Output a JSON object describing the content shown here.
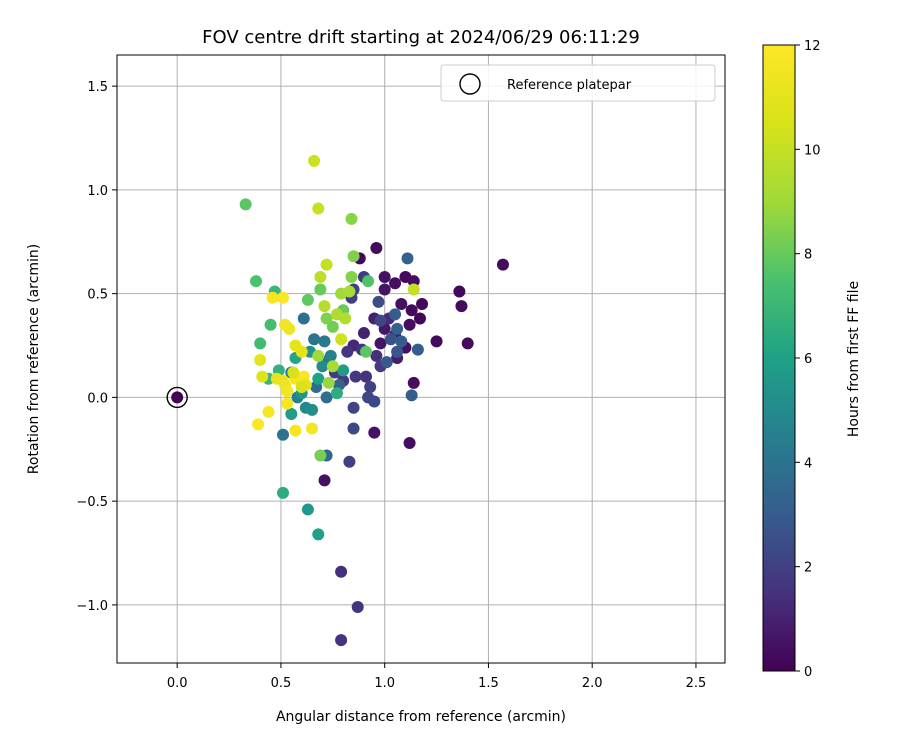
{
  "chart_data": {
    "type": "scatter",
    "title": "FOV centre drift starting at 2024/06/29 06:11:29",
    "xlabel": "Angular distance from reference (arcmin)",
    "ylabel": "Rotation from reference (arcmin)",
    "xlim": [
      -0.29,
      2.64
    ],
    "ylim": [
      -1.28,
      1.65
    ],
    "xticks": [
      0.0,
      0.5,
      1.0,
      1.5,
      2.0,
      2.5
    ],
    "yticks": [
      -1.0,
      -0.5,
      0.0,
      0.5,
      1.0,
      1.5
    ],
    "xtick_labels": [
      "0.0",
      "0.5",
      "1.0",
      "1.5",
      "2.0",
      "2.5"
    ],
    "ytick_labels": [
      "−1.0",
      "−0.5",
      "0.0",
      "0.5",
      "1.0",
      "1.5"
    ],
    "grid": true,
    "legend": {
      "placement": "top-right",
      "entries": [
        "Reference platepar"
      ]
    },
    "reference_point": {
      "x": 0.0,
      "y": 0.0,
      "hours": 0
    },
    "colorbar": {
      "label": "Hours from first FF file",
      "range": [
        0,
        12
      ],
      "ticks": [
        0,
        2,
        4,
        6,
        8,
        10,
        12
      ],
      "tick_labels": [
        "0",
        "2",
        "4",
        "6",
        "8",
        "10",
        "12"
      ],
      "colormap": "viridis"
    },
    "points": [
      [
        0.88,
        0.67,
        0.2
      ],
      [
        0.96,
        0.72,
        0.3
      ],
      [
        1.0,
        0.58,
        0.5
      ],
      [
        1.05,
        0.55,
        0.4
      ],
      [
        1.1,
        0.58,
        0.3
      ],
      [
        1.14,
        0.56,
        0.4
      ],
      [
        1.0,
        0.52,
        0.6
      ],
      [
        1.08,
        0.45,
        0.5
      ],
      [
        1.13,
        0.42,
        0.3
      ],
      [
        1.18,
        0.45,
        0.2
      ],
      [
        1.12,
        0.35,
        0.4
      ],
      [
        1.17,
        0.38,
        0.2
      ],
      [
        1.05,
        0.3,
        0.8
      ],
      [
        1.0,
        0.33,
        0.7
      ],
      [
        0.98,
        0.26,
        0.6
      ],
      [
        1.1,
        0.24,
        0.5
      ],
      [
        1.06,
        0.19,
        0.9
      ],
      [
        1.25,
        0.27,
        0.3
      ],
      [
        1.36,
        0.51,
        0.2
      ],
      [
        1.37,
        0.44,
        0.3
      ],
      [
        1.4,
        0.26,
        0.3
      ],
      [
        1.57,
        0.64,
        0.3
      ],
      [
        1.14,
        0.07,
        0.4
      ],
      [
        0.95,
        -0.17,
        0.5
      ],
      [
        1.12,
        -0.22,
        0.4
      ],
      [
        0.71,
        -0.4,
        0.5
      ],
      [
        0.95,
        0.38,
        1.0
      ],
      [
        0.9,
        0.31,
        1.0
      ],
      [
        0.85,
        0.25,
        1.2
      ],
      [
        1.02,
        0.38,
        1.3
      ],
      [
        0.96,
        0.2,
        1.4
      ],
      [
        0.89,
        0.23,
        1.5
      ],
      [
        0.82,
        0.22,
        1.6
      ],
      [
        0.91,
        0.1,
        1.5
      ],
      [
        0.98,
        0.15,
        1.8
      ],
      [
        0.86,
        0.1,
        1.7
      ],
      [
        0.8,
        0.08,
        1.8
      ],
      [
        0.76,
        0.12,
        1.9
      ],
      [
        0.93,
        0.05,
        2.0
      ],
      [
        0.85,
        -0.05,
        2.1
      ],
      [
        0.92,
        0.0,
        2.2
      ],
      [
        0.95,
        -0.02,
        2.3
      ],
      [
        0.98,
        0.37,
        2.2
      ],
      [
        0.84,
        0.48,
        2.0
      ],
      [
        0.85,
        0.52,
        2.0
      ],
      [
        0.9,
        0.58,
        1.9
      ],
      [
        0.97,
        0.46,
        2.5
      ],
      [
        1.03,
        0.28,
        2.6
      ],
      [
        1.06,
        0.22,
        2.8
      ],
      [
        1.01,
        0.17,
        2.9
      ],
      [
        1.08,
        0.27,
        3.0
      ],
      [
        1.05,
        0.4,
        3.1
      ],
      [
        1.06,
        0.33,
        3.2
      ],
      [
        1.13,
        0.01,
        3.0
      ],
      [
        1.16,
        0.23,
        3.0
      ],
      [
        1.11,
        0.67,
        3.2
      ],
      [
        0.79,
        -0.84,
        1.4
      ],
      [
        0.87,
        -1.01,
        1.6
      ],
      [
        0.79,
        -1.17,
        1.5
      ],
      [
        0.83,
        -0.31,
        2.0
      ],
      [
        0.85,
        -0.15,
        2.3
      ],
      [
        0.72,
        -0.28,
        3.5
      ],
      [
        0.78,
        0.06,
        3.4
      ],
      [
        0.72,
        0.0,
        3.8
      ],
      [
        0.67,
        0.05,
        3.7
      ],
      [
        0.73,
        0.18,
        3.8
      ],
      [
        0.66,
        0.28,
        4.0
      ],
      [
        0.61,
        0.38,
        3.9
      ],
      [
        0.55,
        0.12,
        4.2
      ],
      [
        0.51,
        -0.18,
        3.9
      ],
      [
        0.58,
        0.0,
        4.5
      ],
      [
        0.62,
        -0.05,
        4.9
      ],
      [
        0.65,
        -0.06,
        5.2
      ],
      [
        0.6,
        0.02,
        5.5
      ],
      [
        0.55,
        -0.08,
        5.8
      ],
      [
        0.63,
        -0.54,
        5.6
      ],
      [
        0.68,
        -0.66,
        6.0
      ],
      [
        0.51,
        -0.46,
        6.5
      ],
      [
        0.71,
        0.27,
        4.3
      ],
      [
        0.74,
        0.2,
        4.6
      ],
      [
        0.7,
        0.15,
        5.0
      ],
      [
        0.64,
        0.22,
        5.3
      ],
      [
        0.68,
        0.09,
        6.0
      ],
      [
        0.77,
        0.02,
        6.5
      ],
      [
        0.8,
        0.13,
        5.8
      ],
      [
        0.57,
        0.19,
        6.2
      ],
      [
        0.49,
        0.13,
        6.7
      ],
      [
        0.44,
        0.09,
        7.0
      ],
      [
        0.4,
        0.26,
        7.2
      ],
      [
        0.45,
        0.35,
        7.3
      ],
      [
        0.47,
        0.51,
        7.0
      ],
      [
        0.38,
        0.56,
        7.5
      ],
      [
        0.33,
        0.93,
        7.8
      ],
      [
        0.63,
        0.47,
        7.9
      ],
      [
        0.69,
        0.52,
        8.0
      ],
      [
        0.75,
        0.34,
        8.2
      ],
      [
        0.72,
        0.38,
        8.4
      ],
      [
        0.8,
        0.42,
        8.1
      ],
      [
        0.84,
        0.58,
        8.5
      ],
      [
        0.85,
        0.68,
        8.4
      ],
      [
        0.92,
        0.56,
        7.6
      ],
      [
        0.91,
        0.22,
        7.8
      ],
      [
        0.84,
        0.86,
        8.6
      ],
      [
        0.69,
        -0.28,
        8.3
      ],
      [
        0.73,
        0.07,
        8.9
      ],
      [
        0.75,
        0.15,
        9.2
      ],
      [
        0.68,
        0.2,
        9.0
      ],
      [
        0.79,
        0.5,
        9.0
      ],
      [
        0.83,
        0.51,
        9.2
      ],
      [
        0.77,
        0.4,
        9.4
      ],
      [
        0.81,
        0.38,
        9.5
      ],
      [
        0.71,
        0.44,
        9.6
      ],
      [
        0.69,
        0.58,
        9.7
      ],
      [
        0.72,
        0.64,
        10.0
      ],
      [
        0.68,
        0.91,
        10.1
      ],
      [
        0.66,
        1.14,
        10.2
      ],
      [
        1.14,
        0.52,
        10.0
      ],
      [
        0.79,
        0.28,
        10.3
      ],
      [
        0.41,
        0.1,
        10.8
      ],
      [
        0.4,
        0.18,
        11.0
      ],
      [
        0.51,
        0.08,
        11.2
      ],
      [
        0.52,
        0.06,
        11.4
      ],
      [
        0.53,
        0.03,
        11.6
      ],
      [
        0.57,
        0.09,
        11.5
      ],
      [
        0.61,
        0.1,
        11.7
      ],
      [
        0.6,
        0.22,
        11.0
      ],
      [
        0.57,
        0.25,
        11.1
      ],
      [
        0.54,
        0.33,
        11.3
      ],
      [
        0.52,
        0.35,
        11.5
      ],
      [
        0.51,
        0.48,
        11.9
      ],
      [
        0.46,
        0.48,
        11.8
      ],
      [
        0.44,
        -0.07,
        11.7
      ],
      [
        0.39,
        -0.13,
        11.9
      ],
      [
        0.53,
        -0.03,
        11.8
      ],
      [
        0.57,
        -0.16,
        11.8
      ],
      [
        0.65,
        -0.15,
        11.6
      ],
      [
        0.62,
        0.06,
        11.0
      ],
      [
        0.56,
        0.12,
        10.5
      ],
      [
        0.6,
        0.05,
        10.6
      ],
      [
        0.48,
        0.09,
        11.2
      ]
    ]
  }
}
